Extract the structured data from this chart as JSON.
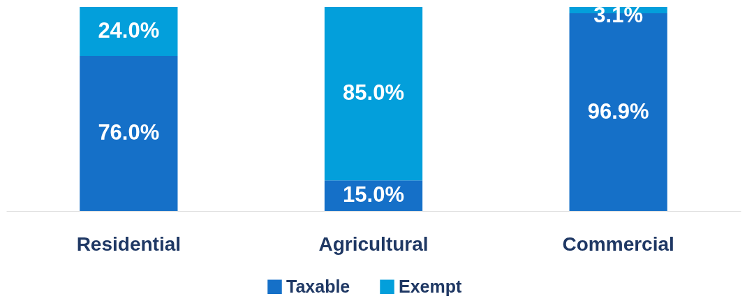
{
  "chart_data": {
    "type": "bar",
    "stacked": true,
    "categories": [
      "Residential",
      "Agricultural",
      "Commercial"
    ],
    "series": [
      {
        "name": "Taxable",
        "color": "#1570c8",
        "values": [
          76.0,
          15.0,
          96.9
        ],
        "value_labels": [
          "76.0%",
          "15.0%",
          "96.9%"
        ]
      },
      {
        "name": "Exempt",
        "color": "#039fdb",
        "values": [
          24.0,
          85.0,
          3.1
        ],
        "value_labels": [
          "24.0%",
          "85.0%",
          "3.1%"
        ]
      }
    ],
    "legend": "bottom",
    "grid": false
  }
}
